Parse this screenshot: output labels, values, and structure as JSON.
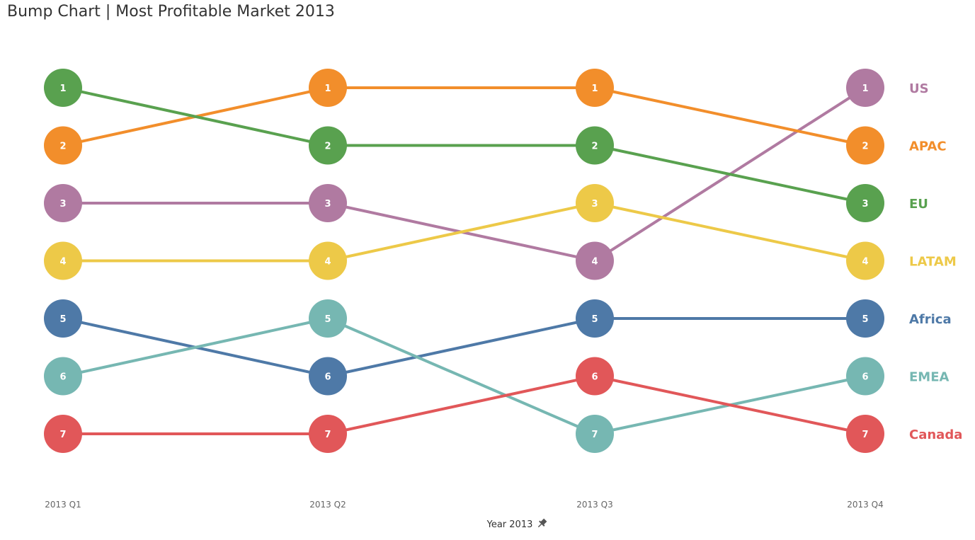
{
  "chart_data": {
    "type": "line",
    "subtype": "bump",
    "title": "Bump Chart | Most Profitable Market 2013",
    "xlabel": "Year 2013",
    "xlabel_icon": "pin-icon",
    "ylabel": "",
    "categories": [
      "2013 Q1",
      "2013 Q2",
      "2013 Q3",
      "2013 Q4"
    ],
    "ylim": [
      1,
      7
    ],
    "y_reversed": true,
    "grid": false,
    "legend": "right (end labels)",
    "series": [
      {
        "name": "US",
        "color": "#b07aa1",
        "values": [
          3,
          3,
          4,
          1
        ]
      },
      {
        "name": "APAC",
        "color": "#f28e2b",
        "values": [
          2,
          1,
          1,
          2
        ]
      },
      {
        "name": "EU",
        "color": "#59a14f",
        "values": [
          1,
          2,
          2,
          3
        ]
      },
      {
        "name": "LATAM",
        "color": "#edc948",
        "values": [
          4,
          4,
          3,
          4
        ]
      },
      {
        "name": "Africa",
        "color": "#4e79a7",
        "values": [
          5,
          6,
          5,
          5
        ]
      },
      {
        "name": "EMEA",
        "color": "#76b7b2",
        "values": [
          6,
          5,
          7,
          6
        ]
      },
      {
        "name": "Canada",
        "color": "#e15759",
        "values": [
          7,
          7,
          6,
          7
        ]
      }
    ]
  }
}
